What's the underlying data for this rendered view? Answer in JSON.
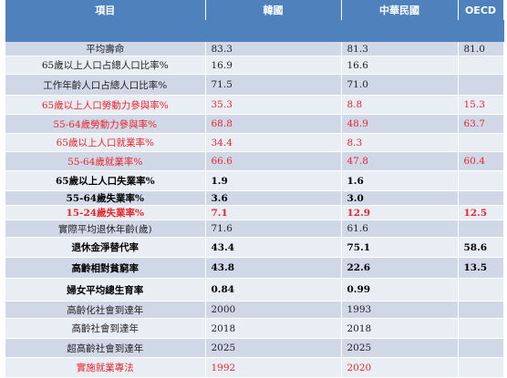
{
  "table": {
    "headers": [
      "項目",
      "韓國",
      "中華民國",
      "OECD"
    ],
    "rows": [
      {
        "label": "平均壽命",
        "korea": "83.3",
        "roc": "81.3",
        "oecd": "81.0",
        "style": "plain"
      },
      {
        "label": "65歲以上人口占總人口比率%",
        "korea": "16.9",
        "roc": "16.6",
        "oecd": "",
        "style": "plain"
      },
      {
        "label": "工作年齡人口占總人口比率%",
        "korea": "71.5",
        "roc": "71.0",
        "oecd": "",
        "style": "plain"
      },
      {
        "label": "65歲以上人口勞動力參與率%",
        "korea": "35.3",
        "roc": "8.8",
        "oecd": "15.3",
        "style": "red"
      },
      {
        "label": "55-64歲勞動力參與率%",
        "korea": "68.8",
        "roc": "48.9",
        "oecd": "63.7",
        "style": "red"
      },
      {
        "label": "65歲以上人口就業率%",
        "korea": "34.4",
        "roc": "8.3",
        "oecd": "",
        "style": "red"
      },
      {
        "label": "55-64歲就業率%",
        "korea": "66.6",
        "roc": "47.8",
        "oecd": "60.4",
        "style": "red"
      },
      {
        "label": "65歲以上人口失業率%",
        "korea": "1.9",
        "roc": "1.6",
        "oecd": "",
        "style": "bold"
      },
      {
        "label": "55-64歲失業率%",
        "korea": "3.6",
        "roc": "3.0",
        "oecd": "",
        "style": "bold"
      },
      {
        "label": "15-24歲失業率%",
        "korea": "7.1",
        "roc": "12.9",
        "oecd": "12.5",
        "style": "redbold"
      },
      {
        "label": "實際平均退休年齡(歲)",
        "korea": "71.6",
        "roc": "61.6",
        "oecd": "",
        "style": "plain"
      },
      {
        "label": "退休金淨替代率",
        "korea": "43.4",
        "roc": "75.1",
        "oecd": "58.6",
        "style": "bold"
      },
      {
        "label": "高齡相對貧窮率",
        "korea": "43.8",
        "roc": "22.6",
        "oecd": "13.5",
        "style": "bold"
      },
      {
        "label": "婦女平均總生育率",
        "korea": "0.84",
        "roc": "0.99",
        "oecd": "",
        "style": "bold"
      },
      {
        "label": "高齡化社會到達年",
        "korea": "2000",
        "roc": "1993",
        "oecd": "",
        "style": "plain"
      },
      {
        "label": "高齡社會到達年",
        "korea": "2018",
        "roc": "2018",
        "oecd": "",
        "style": "plain"
      },
      {
        "label": "超高齡社會到達年",
        "korea": "2025",
        "roc": "2025",
        "oecd": "",
        "style": "plain"
      },
      {
        "label": "實施就業專法",
        "korea": "1992",
        "roc": "2020",
        "oecd": "",
        "style": "red"
      }
    ]
  }
}
